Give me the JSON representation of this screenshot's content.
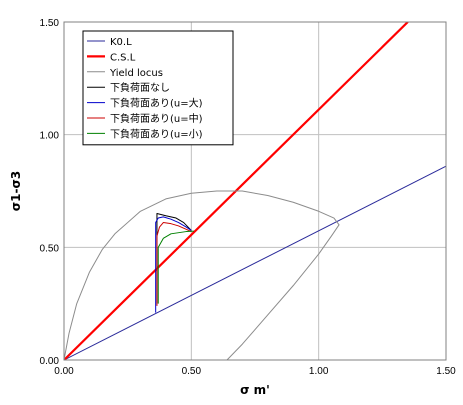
{
  "chart_data": {
    "type": "line",
    "xlabel": "σ m'",
    "ylabel": "σ1-σ3",
    "xlim": [
      0,
      1.5
    ],
    "ylim": [
      0,
      1.5
    ],
    "xticks": [
      "0.00",
      "0.50",
      "1.00",
      "1.50"
    ],
    "yticks": [
      "0.00",
      "0.50",
      "1.00",
      "1.50"
    ],
    "grid": true,
    "legend_position": "top-left",
    "series": [
      {
        "name": "K0.L",
        "color": "#2a2a9a",
        "points": [
          [
            0,
            0
          ],
          [
            1.5,
            0.86
          ]
        ]
      },
      {
        "name": "C.S.L",
        "color": "#ff0000",
        "points": [
          [
            0,
            0
          ],
          [
            1.35,
            1.5
          ]
        ]
      },
      {
        "name": "Yield locus",
        "color": "#8c8c8c",
        "points": [
          [
            0,
            0
          ],
          [
            0.02,
            0.12
          ],
          [
            0.05,
            0.25
          ],
          [
            0.1,
            0.39
          ],
          [
            0.15,
            0.49
          ],
          [
            0.2,
            0.56
          ],
          [
            0.3,
            0.66
          ],
          [
            0.4,
            0.715
          ],
          [
            0.5,
            0.74
          ],
          [
            0.6,
            0.75
          ],
          [
            0.7,
            0.75
          ],
          [
            0.8,
            0.73
          ],
          [
            0.9,
            0.7
          ],
          [
            1.0,
            0.66
          ],
          [
            1.06,
            0.63
          ],
          [
            1.08,
            0.6
          ],
          [
            1.05,
            0.55
          ],
          [
            1.0,
            0.47
          ],
          [
            0.9,
            0.33
          ],
          [
            0.8,
            0.2
          ],
          [
            0.7,
            0.07
          ],
          [
            0.64,
            0
          ]
        ]
      },
      {
        "name": "下負荷面なし",
        "color": "#000000",
        "points": [
          [
            0.365,
            0.25
          ],
          [
            0.365,
            0.65
          ],
          [
            0.4,
            0.64
          ],
          [
            0.44,
            0.63
          ],
          [
            0.47,
            0.61
          ],
          [
            0.5,
            0.575
          ]
        ]
      },
      {
        "name": "下負荷面あり(u=大)",
        "color": "#0000cc",
        "points": [
          [
            0.36,
            0.21
          ],
          [
            0.36,
            0.61
          ],
          [
            0.37,
            0.63
          ],
          [
            0.39,
            0.635
          ],
          [
            0.42,
            0.625
          ],
          [
            0.45,
            0.61
          ],
          [
            0.48,
            0.59
          ],
          [
            0.5,
            0.575
          ]
        ]
      },
      {
        "name": "下負荷面あり(u=中)",
        "color": "#cc0000",
        "points": [
          [
            0.365,
            0.24
          ],
          [
            0.365,
            0.55
          ],
          [
            0.375,
            0.59
          ],
          [
            0.39,
            0.61
          ],
          [
            0.42,
            0.605
          ],
          [
            0.45,
            0.595
          ],
          [
            0.48,
            0.58
          ],
          [
            0.5,
            0.57
          ]
        ]
      },
      {
        "name": "下負荷面あり(u=小)",
        "color": "#008000",
        "points": [
          [
            0.37,
            0.25
          ],
          [
            0.37,
            0.5
          ],
          [
            0.39,
            0.54
          ],
          [
            0.42,
            0.56
          ],
          [
            0.45,
            0.565
          ],
          [
            0.48,
            0.57
          ],
          [
            0.51,
            0.572
          ]
        ]
      }
    ]
  }
}
